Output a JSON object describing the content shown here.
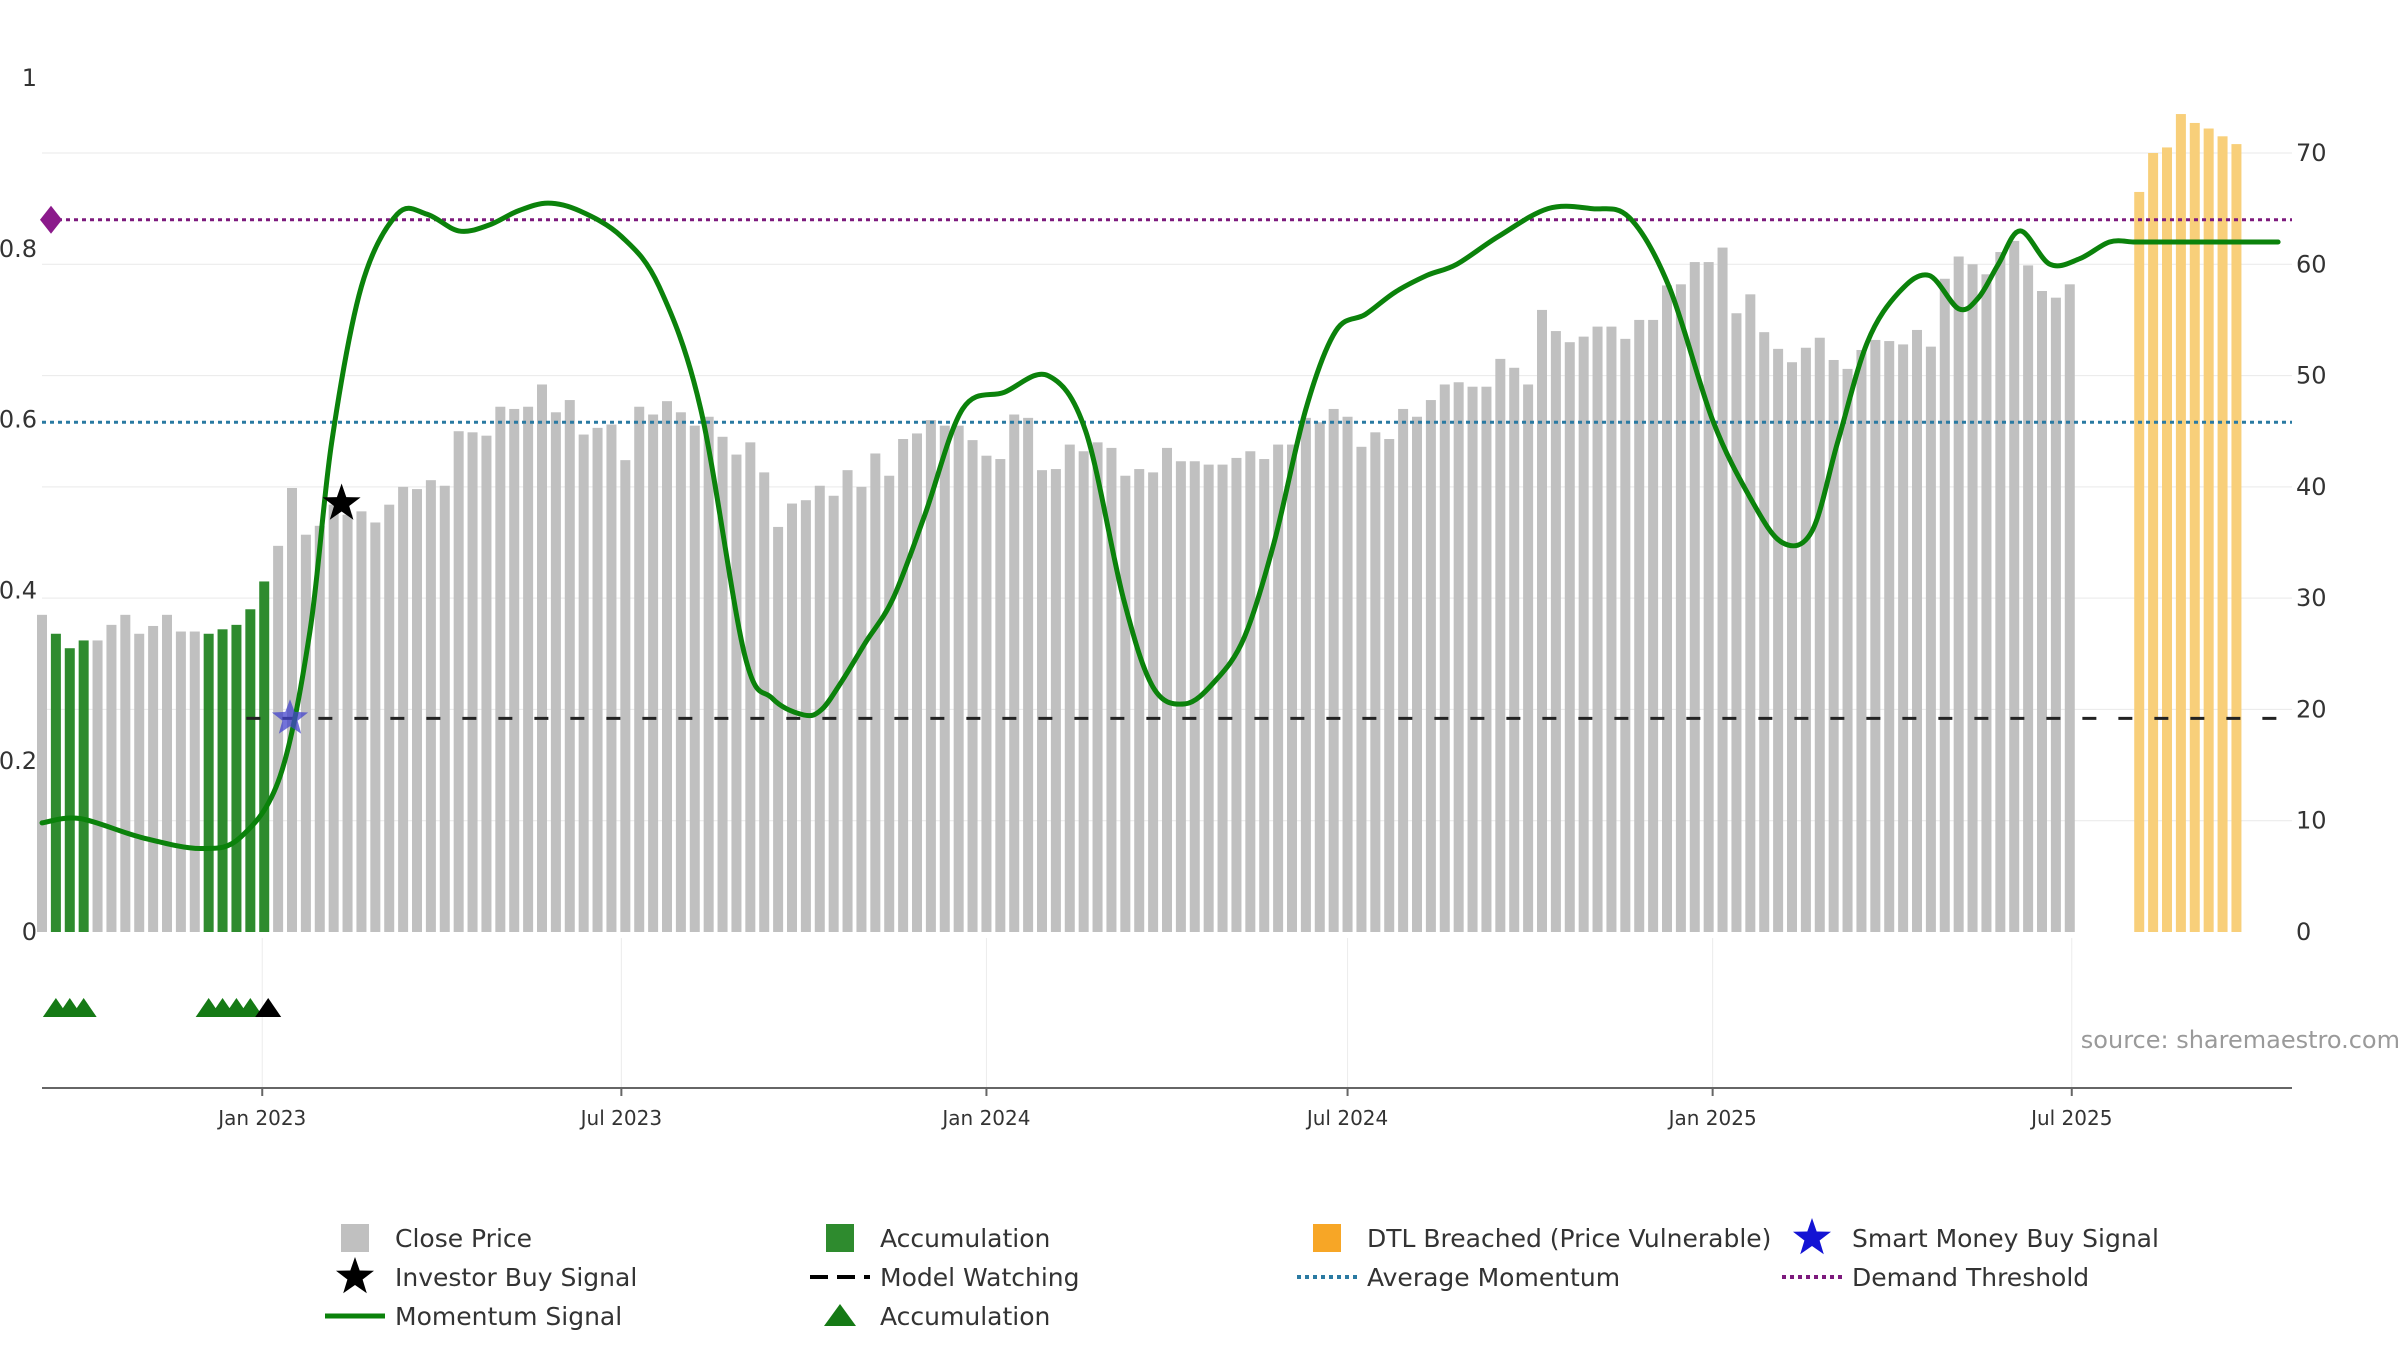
{
  "chart_data": {
    "type": "bar",
    "title": "",
    "source": "source: sharemaestro.com",
    "left_axis": {
      "range": [
        0,
        1
      ],
      "ticks": [
        "0",
        "0.2",
        "0.4",
        "0.6",
        "0.8",
        "1"
      ]
    },
    "right_axis": {
      "range": [
        0,
        74
      ],
      "ticks": [
        "0",
        "10",
        "20",
        "30",
        "40",
        "50",
        "60",
        "70"
      ]
    },
    "x_axis": {
      "start": "2022-09-12",
      "end": "2025-10-20",
      "ticks": [
        {
          "label": "Jan 2023",
          "date": "2023-01-01"
        },
        {
          "label": "Jul 2023",
          "date": "2023-07-01"
        },
        {
          "label": "Jan 2024",
          "date": "2024-01-01"
        },
        {
          "label": "Jul 2024",
          "date": "2024-07-01"
        },
        {
          "label": "Jan 2025",
          "date": "2025-01-01"
        },
        {
          "label": "Jul 2025",
          "date": "2025-07-01"
        }
      ]
    },
    "close_price_bars": {
      "interval_days": 7,
      "values": [
        28.5,
        26.8,
        25.5,
        26.2,
        26.2,
        27.6,
        28.5,
        26.8,
        27.5,
        28.5,
        27.0,
        27.0,
        26.8,
        27.2,
        27.6,
        29.0,
        31.5,
        34.7,
        39.9,
        35.7,
        36.5,
        38.4,
        37.5,
        37.8,
        36.8,
        38.4,
        40.0,
        39.8,
        40.6,
        40.1,
        45.0,
        44.9,
        44.6,
        47.2,
        47.0,
        47.2,
        49.2,
        46.7,
        47.8,
        44.7,
        45.3,
        45.6,
        42.4,
        47.2,
        46.5,
        47.7,
        46.7,
        45.5,
        46.3,
        44.5,
        42.9,
        44.0,
        41.3,
        36.4,
        38.5,
        38.8,
        40.1,
        39.2,
        41.5,
        40.0,
        43.0,
        41.0,
        44.3,
        44.8,
        46.0,
        45.5,
        45.5,
        44.2,
        42.8,
        42.5,
        46.5,
        46.2,
        41.5,
        41.6,
        43.8,
        43.2,
        44.0,
        43.5,
        41.0,
        41.6,
        41.3,
        43.5,
        42.3,
        42.3,
        42.0,
        42.0,
        42.6,
        43.2,
        42.5,
        43.8,
        43.8,
        46.2,
        45.8,
        47.0,
        46.3,
        43.6,
        44.9,
        44.3,
        47.0,
        46.3,
        47.8,
        49.2,
        49.4,
        49.0,
        49.0,
        51.5,
        50.7,
        49.2,
        55.9,
        54.0,
        53.0,
        53.5,
        54.4,
        54.4,
        53.3,
        55.0,
        55.0,
        58.1,
        58.2,
        60.2,
        60.2,
        61.5,
        55.6,
        57.3,
        53.9,
        52.4,
        51.2,
        52.5,
        53.4,
        51.4,
        50.6,
        52.3,
        53.2,
        53.1,
        52.8,
        54.1,
        52.6,
        58.7,
        60.7,
        60.0,
        59.1,
        61.1,
        62.1,
        59.9,
        57.6,
        57.0,
        58.2
      ]
    },
    "accumulation_bars": {
      "indices": [
        1,
        2,
        3,
        12,
        13,
        14,
        15,
        16
      ],
      "values": [
        26.8,
        25.5,
        26.2,
        26.8,
        27.2,
        27.6,
        29.0,
        31.5
      ]
    },
    "dtl_breached_bars": {
      "start_index": 151,
      "values": [
        66.5,
        70.0,
        70.5,
        73.5,
        72.7,
        72.2,
        71.5,
        70.8
      ]
    },
    "momentum_signal": {
      "dates": [
        "2022-09-12",
        "2022-10-01",
        "2022-11-01",
        "2022-12-01",
        "2022-12-21",
        "2023-01-10",
        "2023-01-25",
        "2023-02-05",
        "2023-02-20",
        "2023-03-10",
        "2023-03-25",
        "2023-04-10",
        "2023-04-25",
        "2023-05-10",
        "2023-05-25",
        "2023-06-10",
        "2023-07-01",
        "2023-07-20",
        "2023-08-10",
        "2023-09-01",
        "2023-09-15",
        "2023-10-01",
        "2023-10-10",
        "2023-10-20",
        "2023-11-01",
        "2023-11-15",
        "2023-12-01",
        "2023-12-20",
        "2024-01-10",
        "2024-02-01",
        "2024-02-20",
        "2024-03-10",
        "2024-03-25",
        "2024-04-10",
        "2024-04-25",
        "2024-05-10",
        "2024-05-25",
        "2024-06-10",
        "2024-06-25",
        "2024-07-10",
        "2024-07-25",
        "2024-08-10",
        "2024-08-25",
        "2024-09-15",
        "2024-10-10",
        "2024-11-01",
        "2024-11-20",
        "2024-12-10",
        "2025-01-01",
        "2025-01-20",
        "2025-02-05",
        "2025-02-20",
        "2025-03-05",
        "2025-03-20",
        "2025-04-05",
        "2025-04-20",
        "2025-05-05",
        "2025-05-15",
        "2025-05-25",
        "2025-06-05",
        "2025-06-20",
        "2025-07-05",
        "2025-07-20",
        "2025-08-01",
        "2025-08-08",
        "2025-08-15",
        "2025-08-22",
        "2025-09-01",
        "2025-09-08",
        "2025-09-15",
        "2025-09-22",
        "2025-10-01",
        "2025-10-13"
      ],
      "values": [
        9.8,
        10.2,
        8.5,
        7.5,
        8.5,
        14.0,
        27.0,
        44.0,
        58.0,
        64.5,
        64.5,
        63.0,
        63.5,
        64.8,
        65.5,
        64.8,
        62.5,
        58.0,
        47.0,
        25.0,
        21.0,
        19.5,
        20.0,
        22.5,
        26.0,
        30.0,
        37.5,
        47.0,
        48.5,
        50.0,
        45.0,
        30.0,
        22.0,
        20.5,
        22.5,
        26.5,
        35.0,
        47.0,
        54.0,
        55.5,
        57.5,
        59.0,
        60.0,
        62.5,
        65.0,
        65.0,
        64.2,
        58.0,
        46.0,
        39.0,
        35.0,
        36.0,
        44.0,
        53.0,
        57.5,
        59.0,
        56.0,
        57.0,
        60.0,
        63.0,
        60.0,
        60.5,
        62.0,
        62.0,
        62.0,
        62.0,
        62.0,
        62.0,
        62.0,
        62.0,
        62.0,
        62.0,
        62.0
      ]
    },
    "model_watching_level": 19.2,
    "model_watching_start": "2022-12-24",
    "average_momentum_level": 45.8,
    "demand_threshold_level": 64.0,
    "investor_buy_signal": {
      "date": "2023-02-10",
      "value": 38.5
    },
    "smart_money_buy_signal": {
      "date": "2023-01-15",
      "value": 19.2
    },
    "accumulation_triangles": {
      "dates": [
        "2022-09-19",
        "2022-09-26",
        "2022-10-03",
        "2022-12-05",
        "2022-12-12",
        "2022-12-19",
        "2022-12-26"
      ],
      "investor_triangle_date": "2023-01-04"
    },
    "colors": {
      "close_price": "#c0c0c0",
      "accumulation": "#2e8b2e",
      "dtl_breached": "#f8cf7a",
      "momentum": "#0b820b",
      "average_momentum": "#2a7aa2",
      "demand_threshold": "#7d1a7d",
      "model_watching": "#222222",
      "smart_money": "#4444cc",
      "investor": "#000000",
      "triangle": "#157a15"
    },
    "legend": [
      {
        "key": "close_price",
        "label": "Close Price",
        "marker": "square-grey"
      },
      {
        "key": "accumulation",
        "label": "Accumulation",
        "marker": "square-green"
      },
      {
        "key": "dtl_breached",
        "label": "DTL Breached (Price Vulnerable)",
        "marker": "square-orange"
      },
      {
        "key": "smart_money",
        "label": "Smart Money Buy Signal",
        "marker": "star-blue"
      },
      {
        "key": "investor",
        "label": "Investor Buy Signal",
        "marker": "star-black"
      },
      {
        "key": "model_watching",
        "label": "Model Watching",
        "marker": "dash-black"
      },
      {
        "key": "average_momentum",
        "label": "Average Momentum",
        "marker": "dot-blue"
      },
      {
        "key": "demand_threshold",
        "label": "Demand Threshold",
        "marker": "dot-purple"
      },
      {
        "key": "momentum",
        "label": "Momentum Signal",
        "marker": "line-green"
      },
      {
        "key": "accumulation_tri",
        "label": "Accumulation",
        "marker": "triangle-green"
      }
    ]
  }
}
